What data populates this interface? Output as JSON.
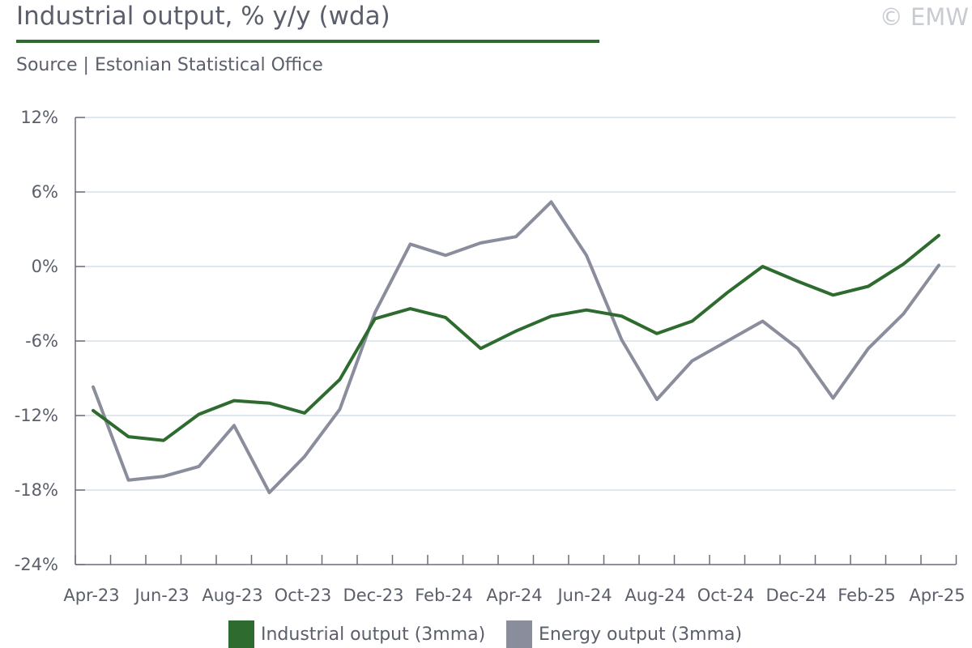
{
  "header": {
    "title": "Industrial output, % y/y (wda)",
    "copyright": "© EMW",
    "source": "Source | Estonian Statistical Office"
  },
  "colors": {
    "industrial": "#2e6b2e",
    "energy": "#8a8d9c",
    "grid": "#d5e0ea",
    "axis": "#6b6f7a",
    "text": "#5a5f6b"
  },
  "chart_data": {
    "type": "line",
    "title": "Industrial output, % y/y (wda)",
    "ylim": [
      -24,
      12
    ],
    "yticks": [
      -24,
      -18,
      -12,
      -6,
      0,
      6,
      12
    ],
    "ytick_labels": [
      "-24%",
      "-18%",
      "-12%",
      "-6%",
      "0%",
      "6%",
      "12%"
    ],
    "grid": true,
    "legend_position": "bottom",
    "x": [
      "Apr-23",
      "May-23",
      "Jun-23",
      "Jul-23",
      "Aug-23",
      "Sep-23",
      "Oct-23",
      "Nov-23",
      "Dec-23",
      "Jan-24",
      "Feb-24",
      "Mar-24",
      "Apr-24",
      "May-24",
      "Jun-24",
      "Jul-24",
      "Aug-24",
      "Sep-24",
      "Oct-24",
      "Nov-24",
      "Dec-24",
      "Jan-25",
      "Feb-25",
      "Mar-25",
      "Apr-25"
    ],
    "xtick_labels": [
      "Apr-23",
      "Jun-23",
      "Aug-23",
      "Oct-23",
      "Dec-23",
      "Feb-24",
      "Apr-24",
      "Jun-24",
      "Aug-24",
      "Oct-24",
      "Dec-24",
      "Feb-25",
      "Apr-25"
    ],
    "series": [
      {
        "name": "Industrial output (3mma)",
        "values": [
          -11.6,
          -13.7,
          -14.0,
          -11.9,
          -10.8,
          -11.0,
          -11.8,
          -9.1,
          -4.2,
          -3.4,
          -4.1,
          -6.6,
          -5.2,
          -4.0,
          -3.5,
          -4.0,
          -5.4,
          -4.4,
          -2.1,
          0.0,
          -1.2,
          -2.3,
          -1.6,
          0.2,
          2.5
        ]
      },
      {
        "name": "Energy output (3mma)",
        "values": [
          -9.7,
          -17.2,
          -16.9,
          -16.1,
          -12.8,
          -18.2,
          -15.3,
          -11.5,
          -3.7,
          1.8,
          0.9,
          1.9,
          2.4,
          5.2,
          0.9,
          -5.9,
          -10.7,
          -7.6,
          -6.0,
          -4.4,
          -6.6,
          -10.6,
          -6.6,
          -3.8,
          0.1
        ]
      }
    ]
  }
}
